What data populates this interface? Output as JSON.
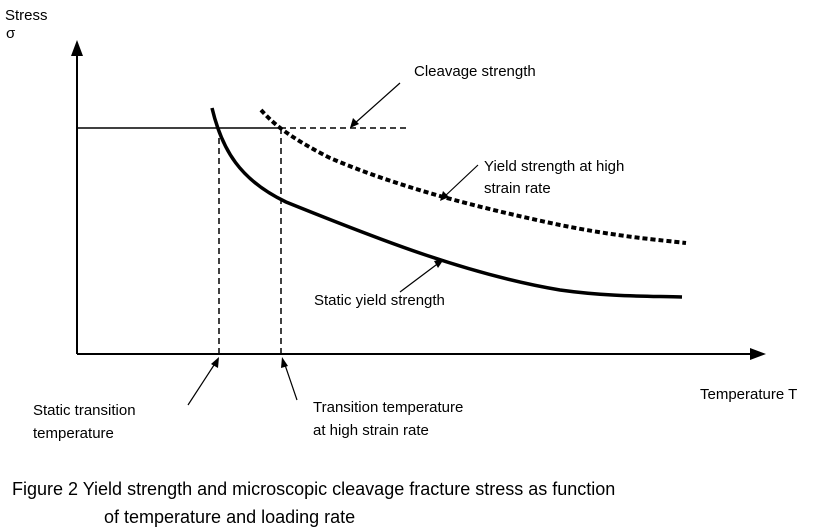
{
  "diagram": {
    "y_axis_label": "Stress",
    "y_axis_symbol": "σ",
    "x_axis_label": "Temperature T",
    "labels": {
      "cleavage_strength": "Cleavage strength",
      "yield_high_rate_line1": "Yield strength at high",
      "yield_high_rate_line2": "strain rate",
      "static_yield": "Static yield strength",
      "static_transition_line1": "Static transition",
      "static_transition_line2": "temperature",
      "high_rate_transition_line1": "Transition temperature",
      "high_rate_transition_line2": "at high strain rate"
    },
    "caption_line1": "Figure 2  Yield strength and microscopic cleavage fracture stress as function",
    "caption_line2": "of temperature and loading rate"
  }
}
